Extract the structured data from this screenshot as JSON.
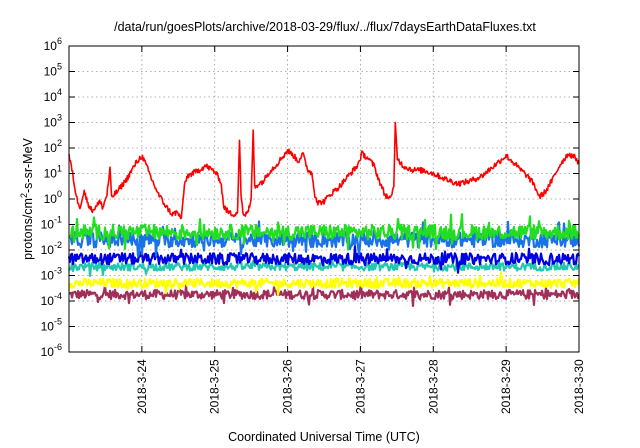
{
  "chart_data": {
    "type": "line",
    "title": "/data/run/goesPlots/archive/2018-03-29/flux/../flux/7daysEarthDataFluxes.txt",
    "xlabel": "Coordinated Universal Time (UTC)",
    "ylabel": {
      "prefix": "protons/cm",
      "sup": "2",
      "suffix": "-s-sr-MeV"
    },
    "y_scale": "log",
    "ylim": [
      1e-06,
      1000000.0
    ],
    "y_ticks": [
      {
        "value": 1000000.0,
        "exp": "6"
      },
      {
        "value": 100000.0,
        "exp": "5"
      },
      {
        "value": 10000.0,
        "exp": "4"
      },
      {
        "value": 1000.0,
        "exp": "3"
      },
      {
        "value": 100.0,
        "exp": "2"
      },
      {
        "value": 10.0,
        "exp": "1"
      },
      {
        "value": 1.0,
        "exp": "0"
      },
      {
        "value": 0.1,
        "exp": "-1"
      },
      {
        "value": 0.01,
        "exp": "-2"
      },
      {
        "value": 0.001,
        "exp": "-3"
      },
      {
        "value": 0.0001,
        "exp": "-4"
      },
      {
        "value": 1e-05,
        "exp": "-5"
      },
      {
        "value": 1e-06,
        "exp": "-6"
      }
    ],
    "xlim": [
      "2018-03-23",
      "2018-03-30"
    ],
    "x_tick_labels": [
      "2018-3-24",
      "2018-3-25",
      "2018-3-26",
      "2018-3-27",
      "2018-3-28",
      "2018-3-29",
      "2018-3-30"
    ],
    "x_tick_dates": [
      "2018-03-24",
      "2018-03-25",
      "2018-03-26",
      "2018-03-27",
      "2018-03-28",
      "2018-03-29",
      "2018-03-30"
    ],
    "grid": true,
    "legend": "none",
    "series": [
      {
        "color": "#ff0000",
        "points": [
          [
            "2018-03-23T00:00",
            50
          ],
          [
            "2018-03-23T01:12",
            10
          ],
          [
            "2018-03-23T02:24",
            1.2
          ],
          [
            "2018-03-23T03:36",
            0.5
          ],
          [
            "2018-03-23T05:00",
            2
          ],
          [
            "2018-03-23T06:00",
            0.8
          ],
          [
            "2018-03-23T07:30",
            0.35
          ],
          [
            "2018-03-23T09:00",
            0.5
          ],
          [
            "2018-03-23T10:30",
            0.9
          ],
          [
            "2018-03-23T11:00",
            0.4
          ],
          [
            "2018-03-23T12:30",
            1.5
          ],
          [
            "2018-03-23T13:30",
            15
          ],
          [
            "2018-03-23T14:00",
            1.2
          ],
          [
            "2018-03-23T16:00",
            2
          ],
          [
            "2018-03-23T19:00",
            6
          ],
          [
            "2018-03-23T22:00",
            25
          ],
          [
            "2018-03-24T00:00",
            50
          ],
          [
            "2018-03-24T01:30",
            20
          ],
          [
            "2018-03-24T03:30",
            5
          ],
          [
            "2018-03-24T05:30",
            1.5
          ],
          [
            "2018-03-24T08:00",
            0.5
          ],
          [
            "2018-03-24T10:00",
            0.25
          ],
          [
            "2018-03-24T11:30",
            0.3
          ],
          [
            "2018-03-24T13:00",
            0.18
          ],
          [
            "2018-03-24T14:00",
            3
          ],
          [
            "2018-03-24T15:00",
            8
          ],
          [
            "2018-03-24T18:00",
            12
          ],
          [
            "2018-03-24T21:00",
            20
          ],
          [
            "2018-03-25T00:00",
            12
          ],
          [
            "2018-03-25T02:00",
            5
          ],
          [
            "2018-03-25T03:00",
            0.5
          ],
          [
            "2018-03-25T04:30",
            0.3
          ],
          [
            "2018-03-25T06:00",
            0.25
          ],
          [
            "2018-03-25T07:30",
            0.3
          ],
          [
            "2018-03-25T08:10",
            200
          ],
          [
            "2018-03-25T08:40",
            1.5
          ],
          [
            "2018-03-25T09:30",
            0.2
          ],
          [
            "2018-03-25T10:30",
            0.25
          ],
          [
            "2018-03-25T11:30",
            0.5
          ],
          [
            "2018-03-25T12:00",
            1
          ],
          [
            "2018-03-25T12:40",
            500
          ],
          [
            "2018-03-25T13:10",
            3
          ],
          [
            "2018-03-25T14:30",
            4
          ],
          [
            "2018-03-25T16:00",
            5
          ],
          [
            "2018-03-25T18:00",
            12
          ],
          [
            "2018-03-25T20:00",
            20
          ],
          [
            "2018-03-25T22:00",
            40
          ],
          [
            "2018-03-26T00:00",
            80
          ],
          [
            "2018-03-26T02:00",
            50
          ],
          [
            "2018-03-26T03:30",
            30
          ],
          [
            "2018-03-26T05:00",
            60
          ],
          [
            "2018-03-26T06:30",
            15
          ],
          [
            "2018-03-26T08:00",
            10
          ],
          [
            "2018-03-26T09:00",
            1.5
          ],
          [
            "2018-03-26T10:00",
            0.7
          ],
          [
            "2018-03-26T12:00",
            0.8
          ],
          [
            "2018-03-26T14:00",
            1.5
          ],
          [
            "2018-03-26T17:00",
            3
          ],
          [
            "2018-03-26T20:00",
            8
          ],
          [
            "2018-03-26T23:00",
            20
          ],
          [
            "2018-03-27T00:30",
            60
          ],
          [
            "2018-03-27T02:30",
            40
          ],
          [
            "2018-03-27T04:30",
            20
          ],
          [
            "2018-03-27T06:00",
            6
          ],
          [
            "2018-03-27T08:00",
            1.5
          ],
          [
            "2018-03-27T10:00",
            1
          ],
          [
            "2018-03-27T11:00",
            3
          ],
          [
            "2018-03-27T11:30",
            1000
          ],
          [
            "2018-03-27T12:10",
            40
          ],
          [
            "2018-03-27T14:00",
            20
          ],
          [
            "2018-03-27T17:00",
            14
          ],
          [
            "2018-03-27T21:00",
            13
          ],
          [
            "2018-03-28T00:00",
            10
          ],
          [
            "2018-03-28T04:00",
            6
          ],
          [
            "2018-03-28T08:00",
            4
          ],
          [
            "2018-03-28T12:00",
            5
          ],
          [
            "2018-03-28T16:00",
            8
          ],
          [
            "2018-03-28T20:00",
            20
          ],
          [
            "2018-03-29T00:00",
            50
          ],
          [
            "2018-03-29T02:00",
            30
          ],
          [
            "2018-03-29T04:30",
            15
          ],
          [
            "2018-03-29T07:00",
            8
          ],
          [
            "2018-03-29T09:00",
            4
          ],
          [
            "2018-03-29T11:00",
            1.2
          ],
          [
            "2018-03-29T13:00",
            2
          ],
          [
            "2018-03-29T15:00",
            5
          ],
          [
            "2018-03-29T18:00",
            25
          ],
          [
            "2018-03-29T20:30",
            60
          ],
          [
            "2018-03-29T23:00",
            40
          ],
          [
            "2018-03-30T00:00",
            25
          ]
        ]
      },
      {
        "color": "#22dd22",
        "base": 0.05,
        "log_spread": 0.3
      },
      {
        "color": "#1a72e8",
        "base": 0.025,
        "log_spread": 0.3
      },
      {
        "color": "#0000e0",
        "base": 0.0045,
        "log_spread": 0.22
      },
      {
        "color": "#22c7b0",
        "base": 0.0022,
        "log_spread": 0.15
      },
      {
        "color": "#ffff00",
        "base": 0.0005,
        "log_spread": 0.18
      },
      {
        "color": "#a0305a",
        "base": 0.00018,
        "log_spread": 0.18
      }
    ]
  }
}
